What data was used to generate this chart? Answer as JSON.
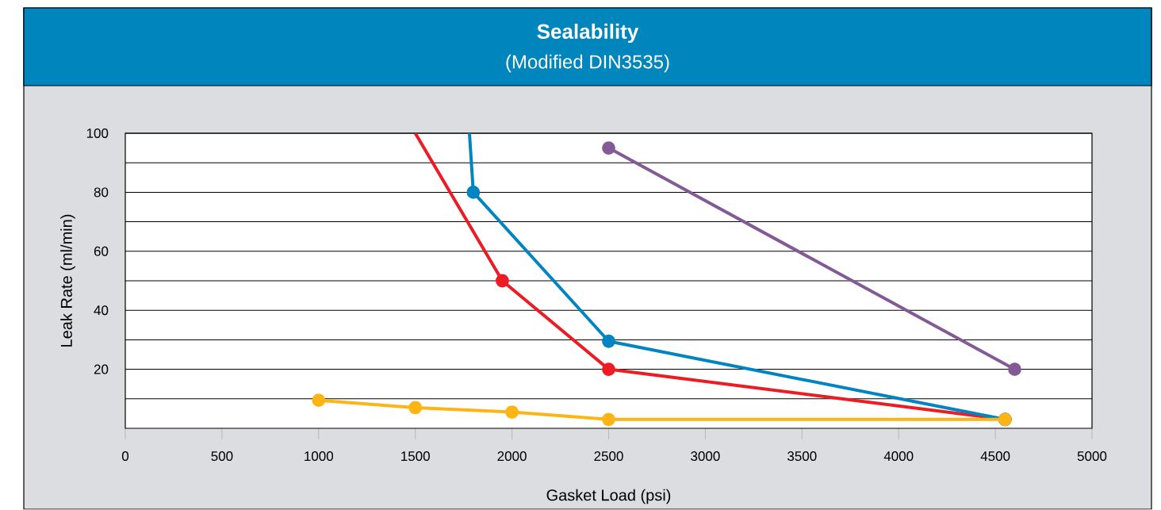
{
  "chart_data": {
    "type": "line",
    "title": "Sealability",
    "subtitle": "(Modified DIN3535)",
    "xlabel": "Gasket Load (psi)",
    "ylabel": "Leak Rate (ml/min)",
    "xlim": [
      0,
      5000
    ],
    "ylim": [
      0,
      100
    ],
    "xticks": [
      0,
      500,
      1000,
      1500,
      2000,
      2500,
      3000,
      3500,
      4000,
      4500,
      5000
    ],
    "yticks": [
      {
        "value": 10,
        "label": null
      },
      20,
      {
        "value": 30,
        "label": null
      },
      40,
      {
        "value": 50,
        "label": null
      },
      60,
      {
        "value": 70,
        "label": null
      },
      80,
      {
        "value": 90,
        "label": null
      },
      100
    ],
    "grid": "y",
    "marker": "circle",
    "line_style": "solid",
    "series": [
      {
        "color": "#ed1c24",
        "x": [
          1500,
          1950,
          2500,
          4550
        ],
        "values": [
          100,
          50,
          20,
          3
        ]
      },
      {
        "color": "#0085c2",
        "x": [
          1780,
          1800,
          2500,
          4550
        ],
        "values": [
          100,
          80,
          29.5,
          3
        ]
      },
      {
        "color": "#835a95",
        "x": [
          2500,
          4600
        ],
        "values": [
          95,
          20
        ]
      },
      {
        "color": "#fdb515",
        "x": [
          1000,
          1500,
          2000,
          2500,
          4550
        ],
        "values": [
          9.5,
          7,
          5.5,
          3,
          3
        ]
      }
    ]
  }
}
